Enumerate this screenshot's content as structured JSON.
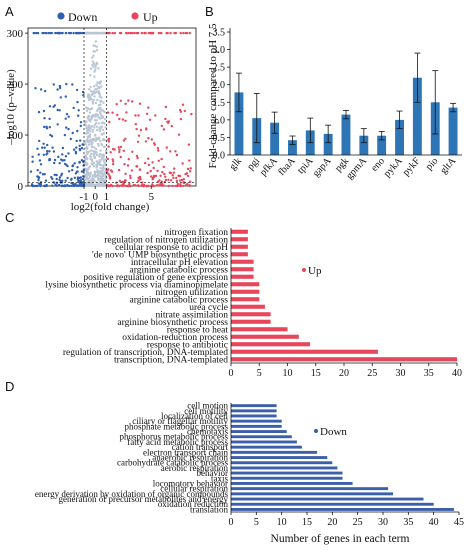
{
  "panel_labels": [
    "A",
    "B",
    "C",
    "D"
  ],
  "colors": {
    "up": "#e8465a",
    "down": "#2f5fb0",
    "ns": "#b9c6d6",
    "bar_blue": "#2e75b6",
    "hbar_red": "#e8465a",
    "hbar_blue": "#3b5fa8",
    "axis": "#111111"
  },
  "chart_data": [
    {
      "panel": "A",
      "type": "scatter",
      "xlabel": "log2(fold change)",
      "ylabel": "–log10 (p–value)",
      "xticks": [
        "-1",
        "0",
        "1",
        "5"
      ],
      "yticks": [
        "0",
        "100",
        "200",
        "300"
      ],
      "xlim": [
        -6,
        9
      ],
      "ylim": [
        0,
        310
      ],
      "threshold_lines_x": [
        -1,
        1
      ],
      "threshold_line_y": 1.3,
      "legend": [
        {
          "label": "Down",
          "color": "#2f5fb0"
        },
        {
          "label": "Up",
          "color": "#e8465a"
        }
      ],
      "legend_placement": "top",
      "point_counts": {
        "up": 280,
        "down": 250,
        "ns": 600
      }
    },
    {
      "panel": "B",
      "type": "bar",
      "ylabel": "Fold-change compared to pH 7.5",
      "categories": [
        "glk",
        "pgi",
        "pfkA",
        "fbaA",
        "tpiA",
        "gapA",
        "pgk",
        "gpmA",
        "eno",
        "pykA",
        "pykF",
        "pio",
        "gltA"
      ],
      "values": [
        1.78,
        1.05,
        0.92,
        0.42,
        0.7,
        0.6,
        1.15,
        0.55,
        0.55,
        1.0,
        2.2,
        1.5,
        1.35
      ],
      "errors": [
        0.55,
        0.7,
        0.3,
        0.12,
        0.35,
        0.25,
        0.12,
        0.2,
        0.12,
        0.25,
        0.7,
        0.9,
        0.12
      ],
      "yticks": [
        "0.0",
        "0.5",
        "1.0",
        "1.5",
        "2.0",
        "2.5",
        "3.0",
        "3.5"
      ],
      "ylim": [
        0,
        3.5
      ]
    },
    {
      "panel": "C",
      "type": "bar",
      "orientation": "horizontal",
      "legend": "Up",
      "categories": [
        "nitrogen fixation",
        "regulation of nitrogen utilization",
        "cellular response to acidic pH",
        "'de novo' UMP biosynthetic process",
        "intracellular pH elevation",
        "arginine catabolic process",
        "positive regulation of gene expression",
        "lysine biosynthetic process via diaminopimelate",
        "nitrogen utilization",
        "arginine catabolic process",
        "urea cycle",
        "nitrate assimilation",
        "arginine biosynthetic process",
        "response to heat",
        "oxidation-reduction process",
        "response to antibiotic",
        "regulation of transcription, DNA-templated",
        "transcription, DNA-templated"
      ],
      "values": [
        3,
        3,
        3,
        3,
        4,
        4,
        4,
        5,
        5,
        5,
        6,
        7,
        7,
        10,
        12,
        14,
        26,
        40
      ],
      "xticks": [
        "0",
        "5",
        "10",
        "15",
        "20",
        "25",
        "30",
        "35",
        "40"
      ],
      "xlim": [
        0,
        40
      ]
    },
    {
      "panel": "D",
      "type": "bar",
      "orientation": "horizontal",
      "legend": "Down",
      "xlabel": "Number of genes in each term",
      "categories": [
        "cell motion",
        "cell motility",
        "localization of cell",
        "ciliary or flagellar motility",
        "phosphate metabolic process",
        "chemotaxis",
        "phosphorus metabolic process",
        "fatty acid metabolic process",
        "cation transport",
        "electron transport chain",
        "anaerobic respiration",
        "carbohydrate catabolic process",
        "aerobic respiration",
        "behavior",
        "taxis",
        "locomotory behavior",
        "cellular respiration",
        "energy derivation by oxidation of organic compounds",
        "generation of precursor metabolites and energy",
        "oxidation reduction",
        "translation"
      ],
      "values": [
        9,
        9,
        9,
        10,
        10,
        11,
        12,
        13,
        14,
        17,
        19,
        20,
        21,
        22,
        22,
        24,
        31,
        32,
        38,
        40,
        44
      ],
      "xticks": [
        "0",
        "5",
        "10",
        "15",
        "20",
        "25",
        "30",
        "35",
        "40",
        "45"
      ],
      "xlim": [
        0,
        45
      ]
    }
  ]
}
